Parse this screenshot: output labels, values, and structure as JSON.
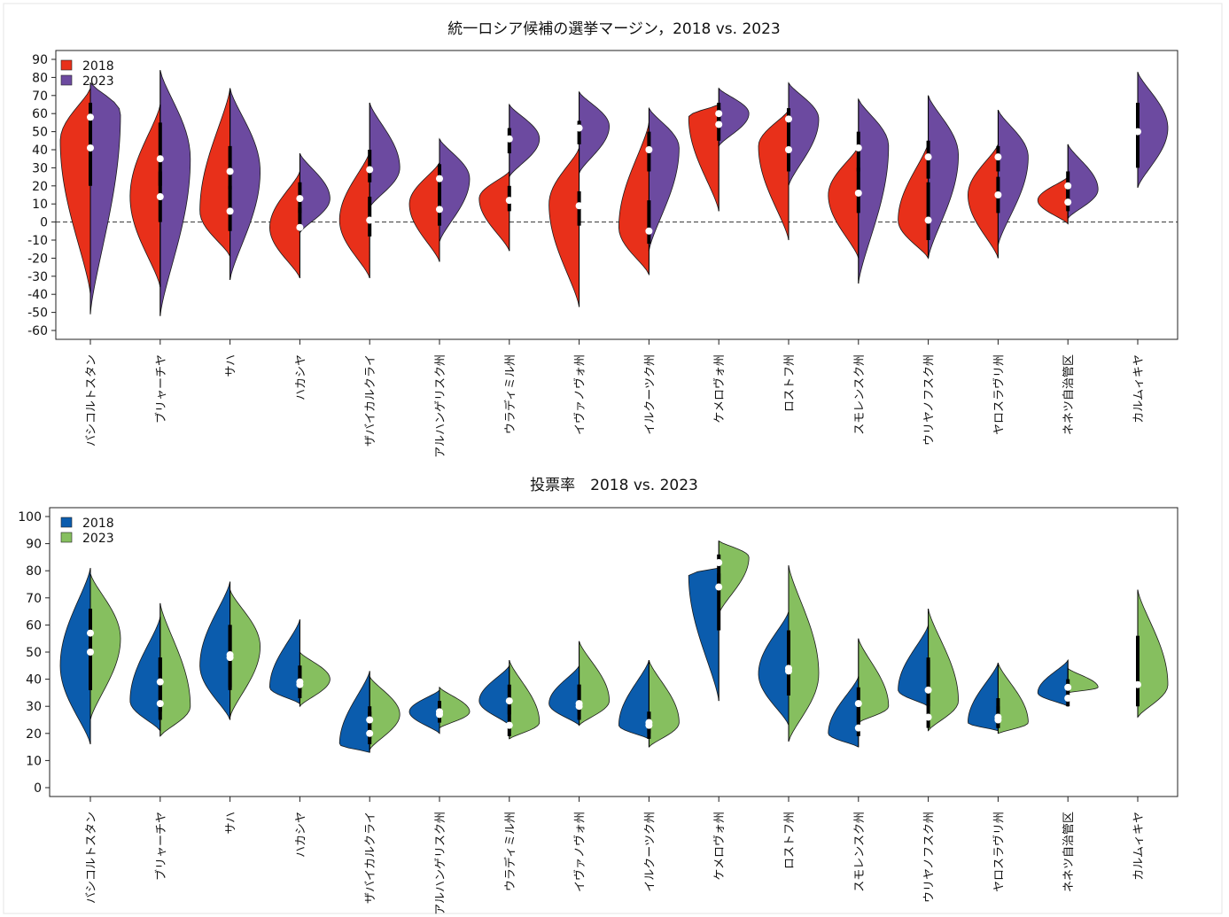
{
  "colors": {
    "margin_2018": "#e8301a",
    "margin_2023": "#6c4aa0",
    "turnout_2018": "#0b5cad",
    "turnout_2023": "#86bf5f"
  },
  "chart_data": [
    {
      "type": "violin",
      "title": "統一ロシア候補の選挙マージン，2018 vs. 2023",
      "xlabel": "",
      "ylabel": "",
      "ylim": [
        -60,
        90
      ],
      "yticks": [
        -60,
        -50,
        -40,
        -30,
        -20,
        -10,
        0,
        10,
        20,
        30,
        40,
        50,
        60,
        70,
        80,
        90
      ],
      "reference_line": 0,
      "legend": {
        "position": "top-left",
        "entries": [
          "2018",
          "2023"
        ]
      },
      "categories": [
        "バシコルトスタン",
        "ブリャーチヤ",
        "サハ",
        "ハカシヤ",
        "ザバイカルクライ",
        "アルハンゲリスク州",
        "ウラディミル州",
        "イヴァノヴォ州",
        "イルクーツク州",
        "ケメロヴォ州",
        "ロストフ州",
        "スモレンスク州",
        "ウリヤノフスク州",
        "ヤロスラヴリ州",
        "ネネツ自治管区",
        "カルムィキヤ"
      ],
      "series": [
        {
          "name": "2018",
          "color": "#e8301a",
          "side": "left",
          "values": [
            {
              "min": -40,
              "max": 74,
              "q1": 20,
              "q3": 55,
              "median": 41,
              "mode": 45,
              "mode2": null
            },
            {
              "min": -36,
              "max": 65,
              "q1": 0,
              "q3": 28,
              "median": 14,
              "mode": 14,
              "mode2": null
            },
            {
              "min": -19,
              "max": 74,
              "q1": -5,
              "q3": 20,
              "median": 6,
              "mode": 6,
              "mode2": null
            },
            {
              "min": -31,
              "max": 28,
              "q1": -5,
              "q3": 8,
              "median": -3,
              "mode": -3,
              "mode2": null
            },
            {
              "min": -31,
              "max": 39,
              "q1": -8,
              "q3": 14,
              "median": 1,
              "mode": 1,
              "mode2": null
            },
            {
              "min": -22,
              "max": 33,
              "q1": -2,
              "q3": 18,
              "median": 7,
              "mode": 10,
              "mode2": null
            },
            {
              "min": -16,
              "max": 28,
              "q1": 6,
              "q3": 20,
              "median": 12,
              "mode": 13,
              "mode2": null
            },
            {
              "min": -47,
              "max": 41,
              "q1": -2,
              "q3": 17,
              "median": 9,
              "mode": 10,
              "mode2": null
            },
            {
              "min": -29,
              "max": 55,
              "q1": -12,
              "q3": 12,
              "median": -5,
              "mode": -3,
              "mode2": null
            },
            {
              "min": 6,
              "max": 65,
              "q1": 45,
              "q3": 63,
              "median": 54,
              "mode": 58,
              "mode2": null
            },
            {
              "min": -10,
              "max": 62,
              "q1": 28,
              "q3": 52,
              "median": 40,
              "mode": 42,
              "mode2": null
            },
            {
              "min": -20,
              "max": 42,
              "q1": 5,
              "q3": 30,
              "median": 16,
              "mode": 15,
              "mode2": null
            },
            {
              "min": -20,
              "max": 44,
              "q1": -10,
              "q3": 22,
              "median": 1,
              "mode": 1,
              "mode2": null
            },
            {
              "min": -20,
              "max": 43,
              "q1": 5,
              "q3": 25,
              "median": 15,
              "mode": 15,
              "mode2": null
            },
            {
              "min": -1,
              "max": 25,
              "q1": 6,
              "q3": 18,
              "median": 11,
              "mode": 12,
              "mode2": null
            },
            null
          ]
        },
        {
          "name": "2023",
          "color": "#6c4aa0",
          "side": "right",
          "values": [
            {
              "min": -51,
              "max": 77,
              "q1": 40,
              "q3": 66,
              "median": 58,
              "mode": 60,
              "mode2": null
            },
            {
              "min": -52,
              "max": 84,
              "q1": 20,
              "q3": 55,
              "median": 35,
              "mode": 35,
              "mode2": null
            },
            {
              "min": -32,
              "max": 74,
              "q1": 18,
              "q3": 42,
              "median": 28,
              "mode": 28,
              "mode2": null
            },
            {
              "min": -6,
              "max": 38,
              "q1": 5,
              "q3": 22,
              "median": 13,
              "mode": 13,
              "mode2": null
            },
            {
              "min": 8,
              "max": 66,
              "q1": 22,
              "q3": 40,
              "median": 29,
              "mode": 30,
              "mode2": null
            },
            {
              "min": -11,
              "max": 46,
              "q1": 15,
              "q3": 32,
              "median": 24,
              "mode": 24,
              "mode2": null
            },
            {
              "min": 25,
              "max": 65,
              "q1": 38,
              "q3": 52,
              "median": 46,
              "mode": 46,
              "mode2": null
            },
            {
              "min": 27,
              "max": 72,
              "q1": 43,
              "q3": 56,
              "median": 52,
              "mode": 53,
              "mode2": null
            },
            {
              "min": -16,
              "max": 63,
              "q1": 28,
              "q3": 50,
              "median": 40,
              "mode": 41,
              "mode2": null
            },
            {
              "min": 42,
              "max": 74,
              "q1": 55,
              "q3": 66,
              "median": 60,
              "mode": 60,
              "mode2": null
            },
            {
              "min": 20,
              "max": 77,
              "q1": 46,
              "q3": 63,
              "median": 57,
              "mode": 57,
              "mode2": null
            },
            {
              "min": -34,
              "max": 68,
              "q1": 28,
              "q3": 50,
              "median": 41,
              "mode": 42,
              "mode2": null
            },
            {
              "min": -20,
              "max": 70,
              "q1": 24,
              "q3": 45,
              "median": 36,
              "mode": 37,
              "mode2": null
            },
            {
              "min": -13,
              "max": 62,
              "q1": 28,
              "q3": 42,
              "median": 36,
              "mode": 36,
              "mode2": null
            },
            {
              "min": 2,
              "max": 43,
              "q1": 12,
              "q3": 28,
              "median": 20,
              "mode": 18,
              "mode2": null
            },
            {
              "min": 19,
              "max": 83,
              "q1": 30,
              "q3": 66,
              "median": 50,
              "mode": 52,
              "mode2": null
            }
          ]
        }
      ]
    },
    {
      "type": "violin",
      "title": "投票率　2018 vs. 2023",
      "xlabel": "",
      "ylabel": "",
      "ylim": [
        0,
        100
      ],
      "yticks": [
        0,
        10,
        20,
        30,
        40,
        50,
        60,
        70,
        80,
        90,
        100
      ],
      "legend": {
        "position": "top-left",
        "entries": [
          "2018",
          "2023"
        ]
      },
      "categories": [
        "バシコルトスタン",
        "ブリャーチヤ",
        "サハ",
        "ハカシヤ",
        "ザバイカルクライ",
        "アルハンゲリスク州",
        "ウラディミル州",
        "イヴァノヴォ州",
        "イルクーツク州",
        "ケメロヴォ州",
        "ロストフ州",
        "スモレンスク州",
        "ウリヤノフスク州",
        "ヤロスラヴリ州",
        "ネネツ自治管区",
        "カルムィキヤ"
      ],
      "series": [
        {
          "name": "2018",
          "color": "#0b5cad",
          "side": "left",
          "values": [
            {
              "min": 16,
              "max": 81,
              "q1": 36,
              "q3": 66,
              "median": 50,
              "mode": 45,
              "mode2": null
            },
            {
              "min": 21,
              "max": 63,
              "q1": 28,
              "q3": 48,
              "median": 39,
              "mode": 32,
              "mode2": null
            },
            {
              "min": 25,
              "max": 76,
              "q1": 36,
              "q3": 60,
              "median": 48,
              "mode": 45,
              "mode2": null
            },
            {
              "min": 31,
              "max": 62,
              "q1": 35,
              "q3": 45,
              "median": 39,
              "mode": 37,
              "mode2": null
            },
            {
              "min": 13,
              "max": 43,
              "q1": 16,
              "q3": 28,
              "median": 20,
              "mode": 16,
              "mode2": null
            },
            {
              "min": 20,
              "max": 36,
              "q1": 24,
              "q3": 32,
              "median": 28,
              "mode": 28,
              "mode2": null
            },
            {
              "min": 23,
              "max": 45,
              "q1": 27,
              "q3": 38,
              "median": 32,
              "mode": 32,
              "mode2": null
            },
            {
              "min": 23,
              "max": 45,
              "q1": 28,
              "q3": 38,
              "median": 31,
              "mode": 31,
              "mode2": null
            },
            {
              "min": 18,
              "max": 47,
              "q1": 20,
              "q3": 28,
              "median": 24,
              "mode": 23,
              "mode2": null
            },
            {
              "min": 32,
              "max": 81,
              "q1": 58,
              "q3": 79,
              "median": 74,
              "mode": 79,
              "mode2": null
            },
            {
              "min": 23,
              "max": 65,
              "q1": 34,
              "q3": 58,
              "median": 43,
              "mode": 42,
              "mode2": null
            },
            {
              "min": 15,
              "max": 41,
              "q1": 19,
              "q3": 30,
              "median": 22,
              "mode": 20,
              "mode2": null
            },
            {
              "min": 30,
              "max": 60,
              "q1": 30,
              "q3": 47,
              "median": 36,
              "mode": 36,
              "mode2": null
            },
            {
              "min": 21,
              "max": 46,
              "q1": 22,
              "q3": 30,
              "median": 25,
              "mode": 24,
              "mode2": null
            },
            {
              "min": 30,
              "max": 47,
              "q1": 30,
              "q3": 37,
              "median": 33,
              "mode": 35,
              "mode2": null
            },
            null
          ]
        },
        {
          "name": "2023",
          "color": "#86bf5f",
          "side": "right",
          "values": [
            {
              "min": 25,
              "max": 79,
              "q1": 36,
              "q3": 66,
              "median": 57,
              "mode": 55,
              "mode2": null
            },
            {
              "min": 19,
              "max": 68,
              "q1": 25,
              "q3": 48,
              "median": 31,
              "mode": 30,
              "mode2": null
            },
            {
              "min": 26,
              "max": 73,
              "q1": 37,
              "q3": 60,
              "median": 49,
              "mode": 52,
              "mode2": null
            },
            {
              "min": 30,
              "max": 50,
              "q1": 33,
              "q3": 45,
              "median": 38,
              "mode": 40,
              "mode2": null
            },
            {
              "min": 14,
              "max": 41,
              "q1": 18,
              "q3": 30,
              "median": 25,
              "mode": 27,
              "mode2": null
            },
            {
              "min": 22,
              "max": 37,
              "q1": 24,
              "q3": 32,
              "median": 27,
              "mode": 28,
              "mode2": null
            },
            {
              "min": 18,
              "max": 47,
              "q1": 19,
              "q3": 30,
              "median": 23,
              "mode": 24,
              "mode2": null
            },
            {
              "min": 23,
              "max": 54,
              "q1": 25,
              "q3": 38,
              "median": 30,
              "mode": 32,
              "mode2": null
            },
            {
              "min": 15,
              "max": 47,
              "q1": 18,
              "q3": 28,
              "median": 23,
              "mode": 24,
              "mode2": null
            },
            {
              "min": 64,
              "max": 91,
              "q1": 74,
              "q3": 86,
              "median": 83,
              "mode": 85,
              "mode2": null
            },
            {
              "min": 17,
              "max": 82,
              "q1": 34,
              "q3": 56,
              "median": 44,
              "mode": 42,
              "mode2": null
            },
            {
              "min": 24,
              "max": 55,
              "q1": 24,
              "q3": 37,
              "median": 31,
              "mode": 30,
              "mode2": null
            },
            {
              "min": 21,
              "max": 66,
              "q1": 22,
              "q3": 48,
              "median": 26,
              "mode": 32,
              "mode2": null
            },
            {
              "min": 20,
              "max": 46,
              "q1": 22,
              "q3": 33,
              "median": 26,
              "mode": 24,
              "mode2": null
            },
            {
              "min": 35,
              "max": 44,
              "q1": 35,
              "q3": 40,
              "median": 37,
              "mode": 37,
              "mode2": null
            },
            {
              "min": 26,
              "max": 73,
              "q1": 30,
              "q3": 56,
              "median": 38,
              "mode": 38,
              "mode2": null
            }
          ]
        }
      ]
    }
  ]
}
